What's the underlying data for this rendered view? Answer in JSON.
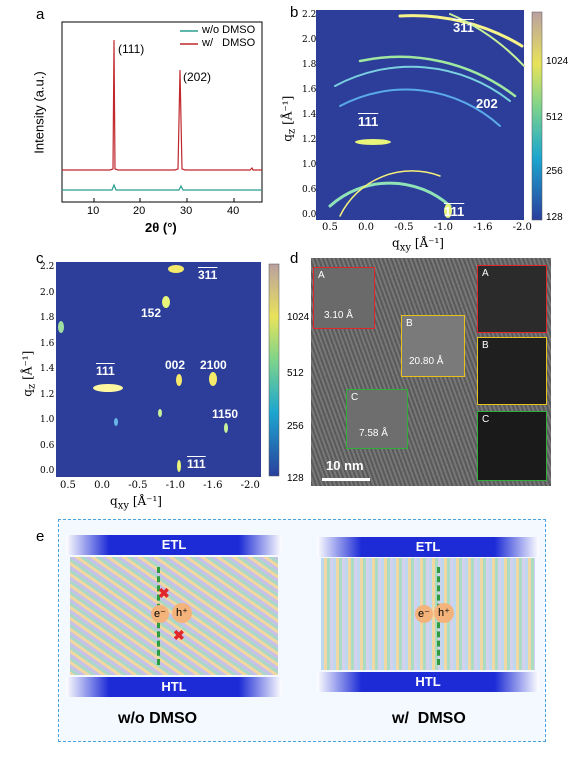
{
  "panels": {
    "a": {
      "label": "a",
      "ylabel": "Intensity (a.u.)",
      "xlabel": "2θ (°)",
      "legend": [
        "w/o DMSO",
        "w/   DMSO"
      ],
      "peak_labels": [
        "(111)",
        "(202)"
      ],
      "xticks": [
        "10",
        "20",
        "30",
        "40"
      ]
    },
    "b": {
      "label": "b",
      "ring_labels": [
        "311",
        "202",
        "111",
        "111"
      ],
      "xlabel": "q",
      "xlabel_sub": "xy",
      "xlabel_unit": "[Å⁻¹]",
      "ylabel": "q",
      "ylabel_sub": "z",
      "ylabel_unit": "[Å⁻¹]",
      "xticks": [
        "0.5",
        "0.0",
        "-0.5",
        "-1.0",
        "-1.6",
        "-2.0"
      ],
      "yticks": [
        "2.2",
        "2.0",
        "1.8",
        "1.6",
        "1.4",
        "1.2",
        "1.0",
        "0.6",
        "0.0"
      ],
      "colorbar": [
        "1024",
        "512",
        "256",
        "128"
      ]
    },
    "c": {
      "label": "c",
      "spot_labels": [
        "311",
        "152",
        "111",
        "002",
        "2100",
        "1150",
        "111"
      ],
      "xticks": [
        "0.5",
        "0.0",
        "-0.5",
        "-1.0",
        "-1.6",
        "-2.0"
      ],
      "yticks": [
        "2.2",
        "2.0",
        "1.8",
        "1.6",
        "1.4",
        "1.2",
        "1.0",
        "0.6",
        "0.0"
      ],
      "colorbar": [
        "1024",
        "512",
        "256",
        "128"
      ]
    },
    "d": {
      "label": "d",
      "box_labels": [
        "A",
        "B",
        "C"
      ],
      "spacings": [
        "3.10 Å",
        "20.80 Å",
        "7.58 Å"
      ],
      "fft_labels": [
        "A",
        "B",
        "C"
      ],
      "scalebar": "10 nm"
    },
    "e": {
      "label": "e",
      "left": {
        "top": "ETL",
        "bottom": "HTL",
        "electron": "e⁻",
        "hole": "h⁺",
        "title": "w/o DMSO"
      },
      "right": {
        "top": "ETL",
        "bottom": "HTL",
        "electron": "e⁻",
        "hole": "h⁺",
        "title": "w/  DMSO"
      }
    }
  },
  "colors": {
    "red_trace": "#c0282d",
    "teal_trace": "#2a9d8f",
    "giwaxs_bg": "#2c3e9a",
    "box_red": "#e0262b",
    "box_yellow": "#e8c21b",
    "box_green": "#2fae3a",
    "dash_border": "#4aa3df"
  }
}
